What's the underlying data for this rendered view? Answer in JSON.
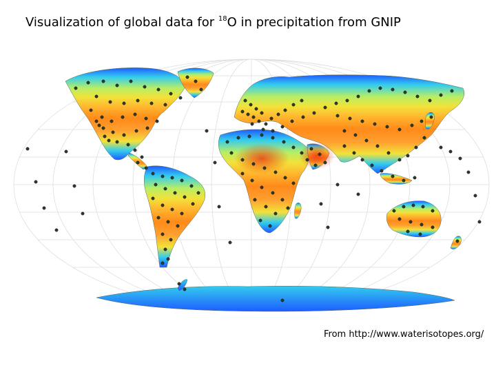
{
  "title": {
    "prefix": "Visualization of global data for ",
    "isotope_mass": "18",
    "suffix": "O in precipitation from GNIP"
  },
  "source": "From http://www.waterisotopes.org/",
  "colors": {
    "cold": "#1e5cff",
    "cool": "#33ccee",
    "mild": "#f2e23a",
    "warm": "#ff8a1a",
    "hot": "#ee3311",
    "station": "#2d3a2a",
    "graticule": "#dddddd"
  },
  "legend_semantics": "color ramp from blue (more depleted) to red (more enriched) values; dark dots are GNIP sampling stations"
}
